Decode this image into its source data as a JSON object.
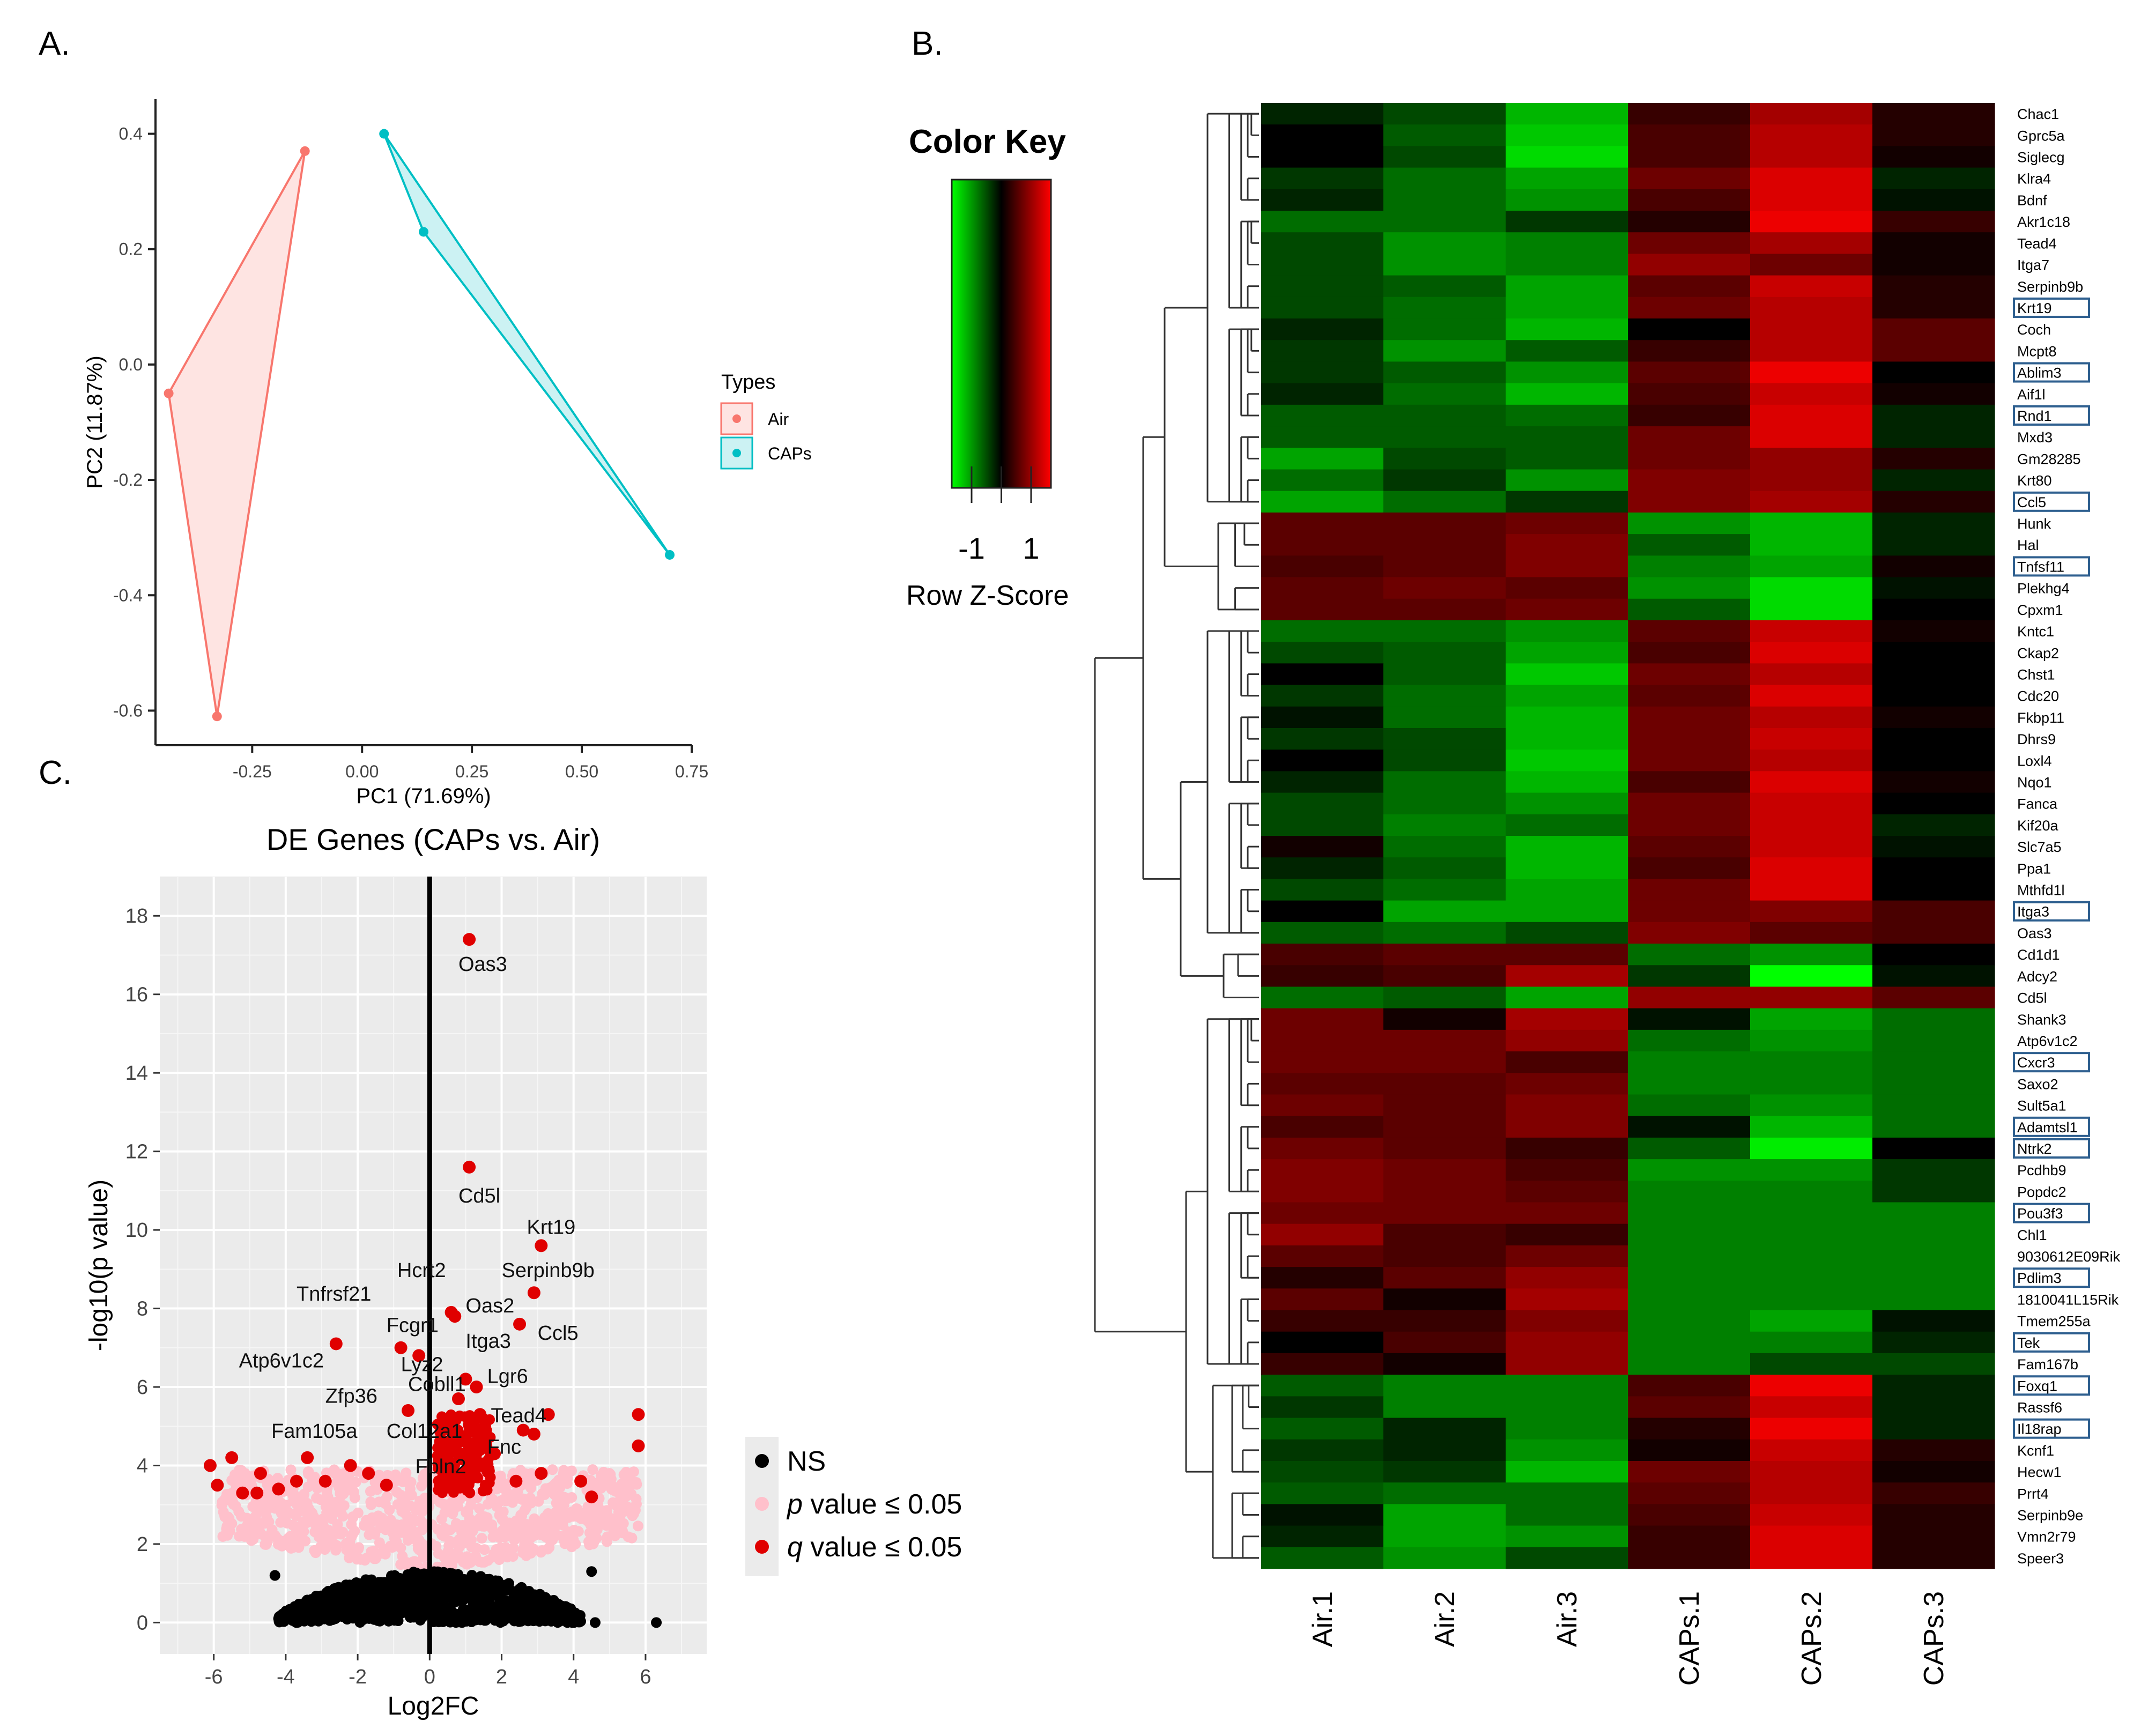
{
  "panels": {
    "a": "A.",
    "b": "B.",
    "c": "C."
  },
  "colors": {
    "air": "#f8766d",
    "caps": "#00bfc4",
    "panel_bg": "#ebebeb",
    "ns": "#000000",
    "pval": "#ffc0cb",
    "qval": "#e00000",
    "hm_red": "#ff0000",
    "hm_green": "#00ff00"
  },
  "chart_data": [
    {
      "type": "scatter",
      "title": "",
      "xlabel": "PC1 (71.69%)",
      "ylabel": "PC2 (11.87%)",
      "xlim": [
        -0.47,
        0.75
      ],
      "ylim": [
        -0.66,
        0.46
      ],
      "xticks": [
        -0.25,
        0.0,
        0.25,
        0.5,
        0.75
      ],
      "xtick_labels": [
        "-0.25",
        "0.00",
        "0.25",
        "0.50",
        "0.75"
      ],
      "yticks": [
        0.4,
        0.2,
        0.0,
        -0.2,
        -0.4,
        -0.6
      ],
      "ytick_labels": [
        "0.4",
        "0.2",
        "0.0",
        "-0.2",
        "-0.4",
        "-0.6"
      ],
      "legend": {
        "title": "Types",
        "position": "right",
        "items": [
          "Air",
          "CAPs"
        ]
      },
      "series": [
        {
          "name": "Air",
          "points": [
            [
              -0.13,
              0.37
            ],
            [
              -0.44,
              -0.05
            ],
            [
              -0.33,
              -0.61
            ]
          ]
        },
        {
          "name": "CAPs",
          "points": [
            [
              0.05,
              0.4
            ],
            [
              0.14,
              0.23
            ],
            [
              0.7,
              -0.33
            ]
          ]
        }
      ]
    },
    {
      "type": "heatmap",
      "title": "",
      "legend": {
        "title": "Color Key",
        "xlabel": "Row Z-Score",
        "ticks": [
          "-1",
          "1"
        ]
      },
      "columns": [
        "Air.1",
        "Air.2",
        "Air.3",
        "CAPs.1",
        "CAPs.2",
        "CAPs.3"
      ],
      "rows": [
        "Chac1",
        "Gprc5a",
        "Siglecg",
        "Klra4",
        "Bdnf",
        "Akr1c18",
        "Tead4",
        "Itga7",
        "Serpinb9b",
        "Krt19",
        "Coch",
        "Mcpt8",
        "Ablim3",
        "Aif1l",
        "Rnd1",
        "Mxd3",
        "Gm28285",
        "Krt80",
        "Ccl5",
        "Hunk",
        "Hal",
        "Tnfsf11",
        "Plekhg4",
        "Cpxm1",
        "Kntc1",
        "Ckap2",
        "Chst1",
        "Cdc20",
        "Fkbp11",
        "Dhrs9",
        "Loxl4",
        "Nqo1",
        "Fanca",
        "Kif20a",
        "Slc7a5",
        "Ppa1",
        "Mthfd1l",
        "Itga3",
        "Oas3",
        "Cd1d1",
        "Adcy2",
        "Cd5l",
        "Shank3",
        "Atp6v1c2",
        "Cxcr3",
        "Saxo2",
        "Sult5a1",
        "Adamtsl1",
        "Ntrk2",
        "Pcdhb9",
        "Popdc2",
        "Pou3f3",
        "Chl1",
        "9030612E09Rik",
        "Pdlim3",
        "1810041L15Rik",
        "Tmem255a",
        "Tek",
        "Fam167b",
        "Foxq1",
        "Rassf6",
        "Il18rap",
        "Kcnf1",
        "Hecw1",
        "Prrt4",
        "Serpinb9e",
        "Vmn2r79",
        "Speer3"
      ],
      "boxed_rows": [
        "Krt19",
        "Ablim3",
        "Rnd1",
        "Ccl5",
        "Tnfsf11",
        "Itga3",
        "Cxcr3",
        "Adamtsl1",
        "Ntrk2",
        "Pou3f3",
        "Pdlim3",
        "Tek",
        "Foxq1",
        "Il18rap"
      ],
      "values": [
        [
          -0.2,
          -0.4,
          -1.0,
          0.3,
          0.9,
          0.2
        ],
        [
          0.0,
          -0.5,
          -1.1,
          0.4,
          1.0,
          0.2
        ],
        [
          0.0,
          -0.4,
          -1.2,
          0.4,
          1.0,
          0.1
        ],
        [
          -0.3,
          -0.6,
          -0.9,
          0.6,
          1.2,
          -0.2
        ],
        [
          -0.2,
          -0.6,
          -0.8,
          0.4,
          1.2,
          -0.1
        ],
        [
          -0.6,
          -0.6,
          -0.3,
          0.2,
          1.3,
          0.3
        ],
        [
          -0.4,
          -0.8,
          -0.7,
          0.6,
          0.9,
          0.1
        ],
        [
          -0.4,
          -0.8,
          -0.7,
          0.8,
          0.6,
          0.1
        ],
        [
          -0.4,
          -0.5,
          -0.9,
          0.5,
          1.1,
          0.2
        ],
        [
          -0.4,
          -0.6,
          -0.9,
          0.6,
          1.0,
          0.2
        ],
        [
          -0.2,
          -0.6,
          -1.0,
          0.0,
          1.0,
          0.5
        ],
        [
          -0.3,
          -0.8,
          -0.5,
          0.3,
          1.0,
          0.5
        ],
        [
          -0.3,
          -0.5,
          -0.8,
          0.5,
          1.3,
          0.0
        ],
        [
          -0.2,
          -0.6,
          -1.0,
          0.4,
          1.1,
          0.1
        ],
        [
          -0.5,
          -0.5,
          -0.6,
          0.3,
          1.2,
          -0.2
        ],
        [
          -0.5,
          -0.5,
          -0.5,
          0.6,
          1.2,
          -0.2
        ],
        [
          -0.9,
          -0.4,
          -0.5,
          0.6,
          0.8,
          0.2
        ],
        [
          -0.6,
          -0.3,
          -0.8,
          0.7,
          0.8,
          -0.2
        ],
        [
          -0.9,
          -0.6,
          -0.3,
          0.7,
          0.9,
          0.2
        ],
        [
          0.5,
          0.5,
          0.6,
          -0.8,
          -1.0,
          -0.2
        ],
        [
          0.5,
          0.5,
          0.7,
          -0.5,
          -1.0,
          -0.2
        ],
        [
          0.4,
          0.5,
          0.7,
          -0.7,
          -0.9,
          0.1
        ],
        [
          0.5,
          0.6,
          0.5,
          -0.8,
          -1.2,
          -0.1
        ],
        [
          0.5,
          0.5,
          0.6,
          -0.5,
          -1.2,
          0.0
        ],
        [
          -0.6,
          -0.6,
          -0.8,
          0.5,
          1.1,
          0.1
        ],
        [
          -0.4,
          -0.5,
          -0.9,
          0.4,
          1.2,
          0.0
        ],
        [
          0.0,
          -0.5,
          -1.1,
          0.6,
          1.0,
          0.0
        ],
        [
          -0.3,
          -0.6,
          -0.9,
          0.5,
          1.2,
          0.0
        ],
        [
          -0.1,
          -0.6,
          -1.0,
          0.6,
          1.0,
          0.1
        ],
        [
          -0.3,
          -0.4,
          -1.0,
          0.6,
          1.1,
          0.0
        ],
        [
          0.0,
          -0.4,
          -1.1,
          0.6,
          1.0,
          0.0
        ],
        [
          -0.2,
          -0.6,
          -1.0,
          0.4,
          1.2,
          0.1
        ],
        [
          -0.4,
          -0.6,
          -0.8,
          0.6,
          1.1,
          0.0
        ],
        [
          -0.4,
          -0.7,
          -0.6,
          0.6,
          1.1,
          -0.2
        ],
        [
          0.1,
          -0.6,
          -1.0,
          0.5,
          1.1,
          -0.1
        ],
        [
          -0.2,
          -0.5,
          -1.0,
          0.4,
          1.2,
          0.0
        ],
        [
          -0.4,
          -0.6,
          -0.9,
          0.6,
          1.2,
          0.0
        ],
        [
          0.0,
          -0.9,
          -0.9,
          0.6,
          0.7,
          0.4
        ],
        [
          -0.5,
          -0.6,
          -0.4,
          0.7,
          0.5,
          0.4
        ],
        [
          0.4,
          0.5,
          0.5,
          -0.6,
          -0.8,
          0.0
        ],
        [
          0.3,
          0.4,
          0.9,
          -0.3,
          -1.4,
          -0.1
        ],
        [
          -0.6,
          -0.5,
          -0.9,
          0.8,
          0.8,
          0.5
        ],
        [
          0.6,
          0.1,
          0.9,
          -0.1,
          -0.9,
          -0.6
        ],
        [
          0.6,
          0.6,
          0.8,
          -0.6,
          -0.8,
          -0.6
        ],
        [
          0.6,
          0.6,
          0.4,
          -0.7,
          -0.7,
          -0.6
        ],
        [
          0.5,
          0.5,
          0.6,
          -0.7,
          -0.7,
          -0.6
        ],
        [
          0.6,
          0.5,
          0.7,
          -0.6,
          -0.8,
          -0.6
        ],
        [
          0.4,
          0.5,
          0.7,
          -0.1,
          -1.0,
          -0.6
        ],
        [
          0.6,
          0.5,
          0.3,
          -0.5,
          -1.3,
          0.0
        ],
        [
          0.7,
          0.6,
          0.4,
          -0.8,
          -0.8,
          -0.3
        ],
        [
          0.7,
          0.6,
          0.5,
          -0.7,
          -0.7,
          -0.3
        ],
        [
          0.6,
          0.6,
          0.6,
          -0.7,
          -0.7,
          -0.7
        ],
        [
          0.8,
          0.4,
          0.3,
          -0.7,
          -0.7,
          -0.7
        ],
        [
          0.5,
          0.4,
          0.6,
          -0.7,
          -0.7,
          -0.7
        ],
        [
          0.2,
          0.5,
          0.8,
          -0.7,
          -0.7,
          -0.7
        ],
        [
          0.5,
          0.1,
          0.9,
          -0.7,
          -0.7,
          -0.7
        ],
        [
          0.3,
          0.3,
          0.7,
          -0.7,
          -0.9,
          -0.1
        ],
        [
          0.0,
          0.4,
          0.8,
          -0.7,
          -0.7,
          -0.2
        ],
        [
          0.3,
          0.1,
          0.8,
          -0.7,
          -0.4,
          -0.4
        ],
        [
          -0.5,
          -0.7,
          -0.7,
          0.4,
          1.3,
          -0.2
        ],
        [
          -0.3,
          -0.7,
          -0.7,
          0.5,
          1.1,
          -0.2
        ],
        [
          -0.5,
          -0.2,
          -0.7,
          0.2,
          1.3,
          -0.2
        ],
        [
          -0.3,
          -0.2,
          -0.8,
          0.1,
          1.1,
          0.2
        ],
        [
          -0.4,
          -0.3,
          -1.0,
          0.6,
          1.0,
          0.1
        ],
        [
          -0.5,
          -0.6,
          -0.6,
          0.5,
          1.0,
          0.3
        ],
        [
          -0.1,
          -0.9,
          -0.6,
          0.4,
          1.1,
          0.2
        ],
        [
          -0.2,
          -0.9,
          -0.8,
          0.3,
          1.2,
          0.2
        ],
        [
          -0.5,
          -0.8,
          -0.4,
          0.3,
          1.2,
          0.2
        ]
      ]
    },
    {
      "type": "scatter",
      "title": "DE Genes (CAPs vs. Air)",
      "xlabel": "Log2FC",
      "ylabel": "-log10(p value)",
      "xlim": [
        -7.5,
        7.7
      ],
      "ylim": [
        -0.8,
        19.0
      ],
      "xticks": [
        -6,
        -4,
        -2,
        0,
        2,
        4,
        6
      ],
      "xtick_labels": [
        "-6",
        "-4",
        "-2",
        "0",
        "2",
        "4",
        "6"
      ],
      "yticks": [
        0,
        2,
        4,
        6,
        8,
        10,
        12,
        14,
        16,
        18
      ],
      "ytick_labels": [
        "0",
        "2",
        "4",
        "6",
        "8",
        "10",
        "12",
        "14",
        "16",
        "18"
      ],
      "legend": {
        "position": "right",
        "items": [
          {
            "key": "ns",
            "label": "NS"
          },
          {
            "key": "p",
            "label_it": "p",
            "label_rest": " value ≤ 0.05"
          },
          {
            "key": "q",
            "label_it": "q",
            "label_rest": " value ≤ 0.05"
          }
        ]
      },
      "highlight_points": [
        [
          1.1,
          17.4
        ],
        [
          1.1,
          11.6
        ],
        [
          3.1,
          9.6
        ],
        [
          2.9,
          8.4
        ],
        [
          0.6,
          7.9
        ],
        [
          0.7,
          7.8
        ],
        [
          2.5,
          7.6
        ],
        [
          -2.6,
          7.1
        ],
        [
          -0.8,
          7.0
        ],
        [
          -0.3,
          6.8
        ],
        [
          1.0,
          6.2
        ],
        [
          1.3,
          6.0
        ],
        [
          -0.6,
          5.4
        ],
        [
          0.8,
          5.7
        ],
        [
          1.4,
          5.3
        ],
        [
          3.3,
          5.3
        ],
        [
          5.8,
          5.3
        ],
        [
          5.8,
          4.5
        ],
        [
          2.6,
          4.9
        ],
        [
          2.9,
          4.8
        ],
        [
          1.8,
          4.3
        ],
        [
          -6.1,
          4.0
        ],
        [
          -5.5,
          4.2
        ],
        [
          -5.9,
          3.5
        ],
        [
          -4.7,
          3.8
        ],
        [
          -4.2,
          3.4
        ],
        [
          -3.4,
          4.2
        ],
        [
          -2.2,
          4.0
        ],
        [
          -1.7,
          3.8
        ],
        [
          0.5,
          4.6
        ],
        [
          0.9,
          4.2
        ],
        [
          1.4,
          4.0
        ],
        [
          2.4,
          3.6
        ],
        [
          3.1,
          3.8
        ],
        [
          4.2,
          3.6
        ],
        [
          4.5,
          3.2
        ],
        [
          -5.2,
          3.3
        ],
        [
          -4.8,
          3.3
        ],
        [
          -3.7,
          3.6
        ],
        [
          -2.9,
          3.6
        ],
        [
          -1.2,
          3.5
        ]
      ],
      "labels": [
        {
          "text": "Oas3",
          "x": 0.8,
          "y": 16.6
        },
        {
          "text": "Cd5l",
          "x": 0.8,
          "y": 10.7
        },
        {
          "text": "Krt19",
          "x": 2.7,
          "y": 9.9
        },
        {
          "text": "Serpinb9b",
          "x": 2.0,
          "y": 8.8
        },
        {
          "text": "Hcrt2",
          "x": -0.9,
          "y": 8.8
        },
        {
          "text": "Tnfrsf21",
          "x": -3.7,
          "y": 8.2
        },
        {
          "text": "Oas2",
          "x": 1.0,
          "y": 7.9
        },
        {
          "text": "Fcgr1",
          "x": -1.2,
          "y": 7.4
        },
        {
          "text": "Ccl5",
          "x": 3.0,
          "y": 7.2
        },
        {
          "text": "Itga3",
          "x": 1.0,
          "y": 7.0
        },
        {
          "text": "Lyz2",
          "x": -0.8,
          "y": 6.4
        },
        {
          "text": "Atp6v1c2",
          "x": -5.3,
          "y": 6.5
        },
        {
          "text": "Lgr6",
          "x": 1.6,
          "y": 6.1
        },
        {
          "text": "Cobll1",
          "x": -0.6,
          "y": 5.9
        },
        {
          "text": "Zfp36",
          "x": -2.9,
          "y": 5.6
        },
        {
          "text": "Tead4",
          "x": 1.7,
          "y": 5.1
        },
        {
          "text": "Fam105a",
          "x": -4.4,
          "y": 4.7
        },
        {
          "text": "Col12a1",
          "x": -1.2,
          "y": 4.7
        },
        {
          "text": "Fnc",
          "x": 1.6,
          "y": 4.3
        },
        {
          "text": "Fbln2",
          "x": -0.4,
          "y": 3.8
        }
      ]
    }
  ]
}
